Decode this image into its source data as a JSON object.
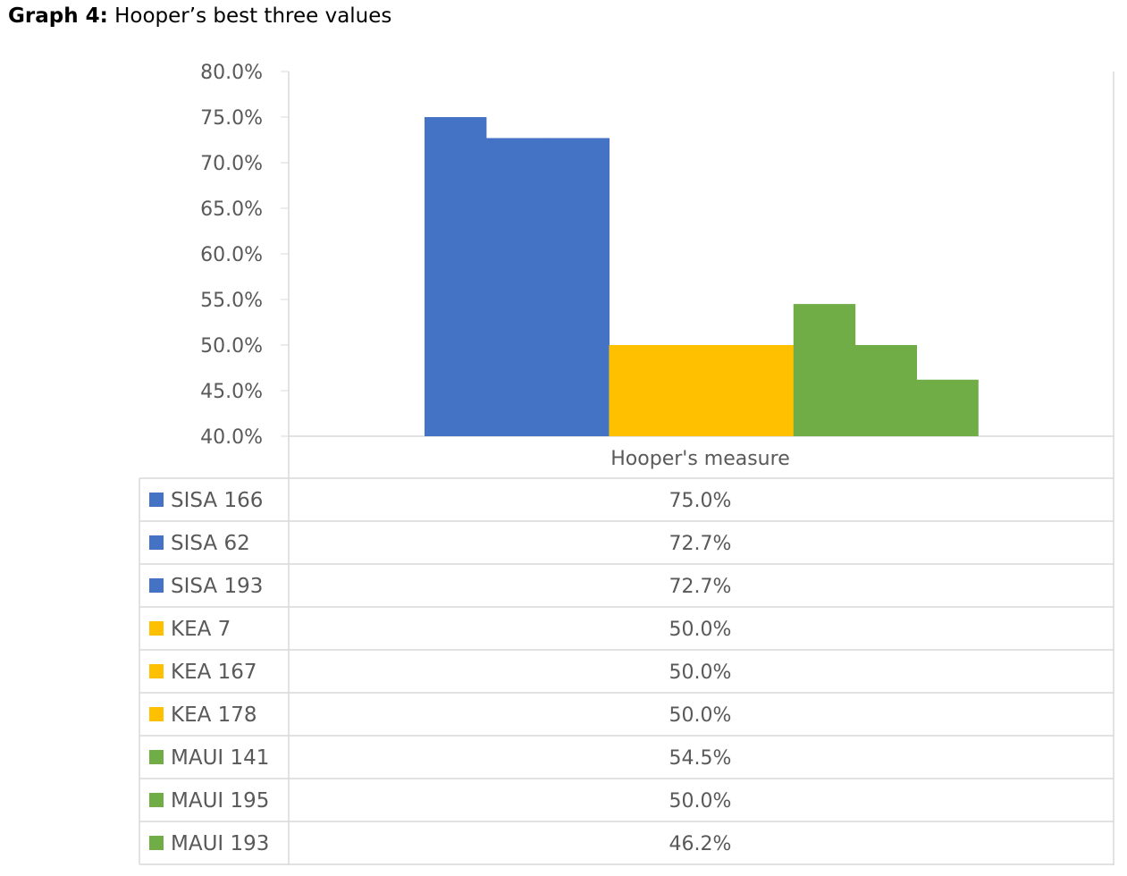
{
  "caption": {
    "label": "Graph 4:",
    "text": "Hooper’s best three values"
  },
  "chart_data": {
    "type": "bar",
    "categories": [
      "Hooper's measure"
    ],
    "series": [
      {
        "name": "SISA 166",
        "color": "#4472C4",
        "values": [
          75.0
        ],
        "label": "75.0%"
      },
      {
        "name": "SISA 62",
        "color": "#4472C4",
        "values": [
          72.7
        ],
        "label": "72.7%"
      },
      {
        "name": "SISA 193",
        "color": "#4472C4",
        "values": [
          72.7
        ],
        "label": "72.7%"
      },
      {
        "name": "KEA 7",
        "color": "#FFC000",
        "values": [
          50.0
        ],
        "label": "50.0%"
      },
      {
        "name": "KEA 167",
        "color": "#FFC000",
        "values": [
          50.0
        ],
        "label": "50.0%"
      },
      {
        "name": "KEA 178",
        "color": "#FFC000",
        "values": [
          50.0
        ],
        "label": "50.0%"
      },
      {
        "name": "MAUI 141",
        "color": "#70AD47",
        "values": [
          54.5
        ],
        "label": "54.5%"
      },
      {
        "name": "MAUI 195",
        "color": "#70AD47",
        "values": [
          50.0
        ],
        "label": "50.0%"
      },
      {
        "name": "MAUI 193",
        "color": "#70AD47",
        "values": [
          46.2
        ],
        "label": "46.2%"
      }
    ],
    "ylim": [
      40,
      80
    ],
    "yticks": [
      80,
      75,
      70,
      65,
      60,
      55,
      50,
      45,
      40
    ],
    "ytick_labels": [
      "80.0%",
      "75.0%",
      "70.0%",
      "65.0%",
      "60.0%",
      "55.0%",
      "50.0%",
      "45.0%",
      "40.0%"
    ],
    "grid": false,
    "legend": "data-table"
  }
}
